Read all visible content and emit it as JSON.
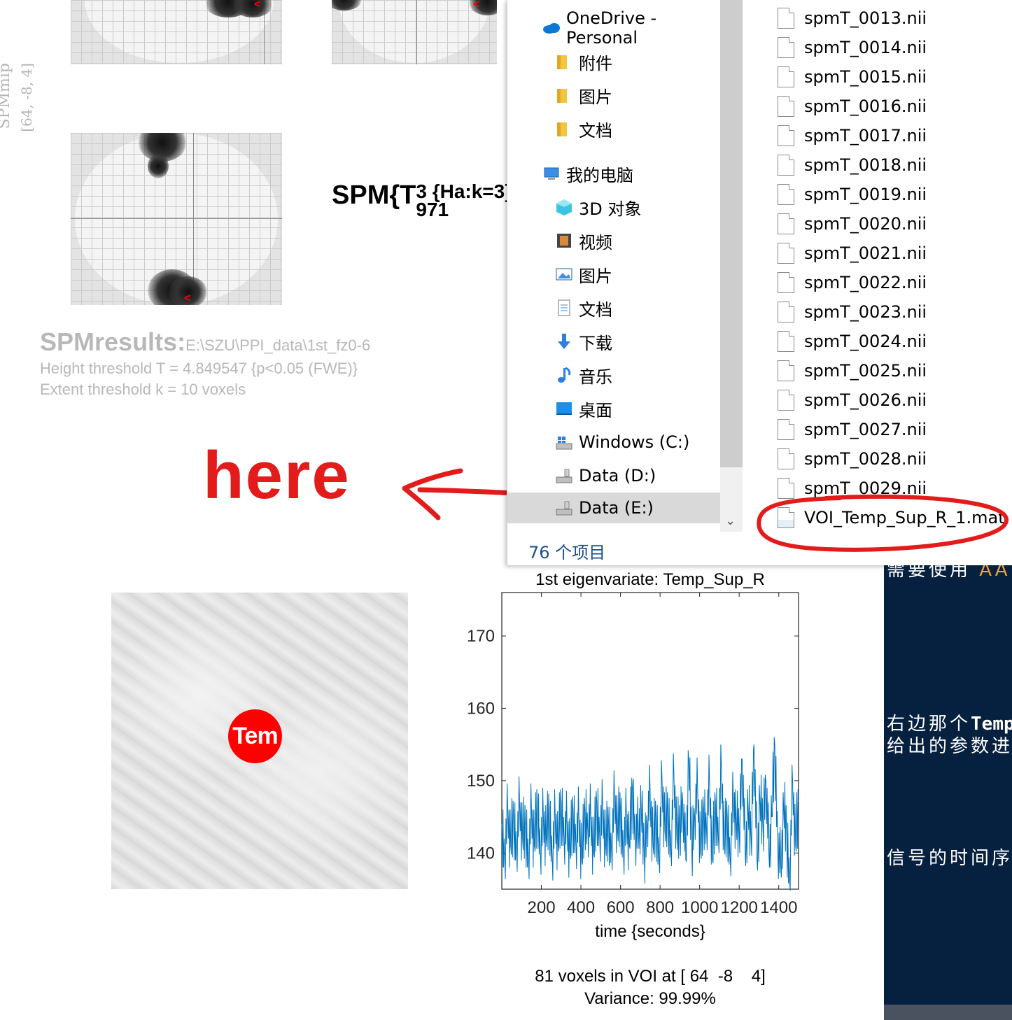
{
  "spm": {
    "side_label": "SPMmip",
    "side_coords": "[64, -8, 4]",
    "stat_prefix": "SPM{T",
    "stat_sup": "3 {Ha:k=3}",
    "stat_sub": "971",
    "stat_suffix": "}",
    "results_title": "SPMresults:",
    "results_path": "E:\\SZU\\PPI_data\\1st_fz0-6",
    "height_threshold": "Height threshold T = 4.849547  {p<0.05 (FWE)}",
    "extent_threshold": "Extent threshold k = 10 voxels"
  },
  "annotation": {
    "here_text": "here",
    "color": "#e31b1b"
  },
  "explorer": {
    "nav_items": [
      {
        "label": "OneDrive - Personal",
        "icon": "onedrive-icon"
      },
      {
        "label": "附件",
        "icon": "folder-icon"
      },
      {
        "label": "图片",
        "icon": "folder-icon"
      },
      {
        "label": "文档",
        "icon": "folder-icon"
      },
      {
        "label": "我的电脑",
        "icon": "computer-icon"
      },
      {
        "label": "3D 对象",
        "icon": "3d-objects-icon"
      },
      {
        "label": "视频",
        "icon": "video-icon"
      },
      {
        "label": "图片",
        "icon": "pictures-icon"
      },
      {
        "label": "文档",
        "icon": "documents-icon"
      },
      {
        "label": "下载",
        "icon": "download-icon"
      },
      {
        "label": "音乐",
        "icon": "music-icon"
      },
      {
        "label": "桌面",
        "icon": "desktop-icon"
      },
      {
        "label": "Windows (C:)",
        "icon": "windows-drive-icon"
      },
      {
        "label": "Data (D:)",
        "icon": "drive-icon"
      },
      {
        "label": "Data (E:)",
        "icon": "drive-icon"
      }
    ],
    "status": "76 个项目",
    "files": [
      "spmT_0013.nii",
      "spmT_0014.nii",
      "spmT_0015.nii",
      "spmT_0016.nii",
      "spmT_0017.nii",
      "spmT_0018.nii",
      "spmT_0019.nii",
      "spmT_0020.nii",
      "spmT_0021.nii",
      "spmT_0022.nii",
      "spmT_0023.nii",
      "spmT_0024.nii",
      "spmT_0025.nii",
      "spmT_0026.nii",
      "spmT_0027.nii",
      "spmT_0028.nii",
      "spmT_0029.nii",
      "VOI_Temp_Sup_R_1.mat"
    ]
  },
  "voi": {
    "dot_label": "Tem",
    "dot_color": "#ff0000"
  },
  "chart_data": {
    "type": "line",
    "title": "1st eigenvariate: Temp_Sup_R",
    "xlabel": "time {seconds}",
    "ylabel": "",
    "xlim": [
      0,
      1500
    ],
    "ylim": [
      135,
      176
    ],
    "xticks": [
      200,
      400,
      600,
      800,
      1000,
      1200,
      1400
    ],
    "yticks": [
      140,
      150,
      160,
      170
    ],
    "series": [
      {
        "color": "#0072bd",
        "x": [
          0,
          15,
          30,
          45,
          60,
          75,
          90,
          105,
          120,
          135,
          150,
          165,
          180,
          195,
          210,
          225,
          240,
          255,
          270,
          285,
          300,
          315,
          330,
          345,
          360,
          375,
          390,
          405,
          420,
          435,
          450,
          465,
          480,
          495,
          510,
          525,
          540,
          555,
          570,
          585,
          600,
          615,
          630,
          645,
          660,
          675,
          690,
          705,
          720,
          735,
          750,
          765,
          780,
          795,
          810,
          825,
          840,
          855,
          870,
          885,
          900,
          915,
          930,
          945,
          960,
          975,
          990,
          1005,
          1020,
          1035,
          1050,
          1065,
          1080,
          1095,
          1110,
          1125,
          1140,
          1155,
          1170,
          1185,
          1200,
          1215,
          1230,
          1245,
          1260,
          1275,
          1290,
          1305,
          1320,
          1335,
          1350,
          1365,
          1380,
          1395,
          1410,
          1425,
          1440,
          1455,
          1470,
          1485,
          1500
        ],
        "values": [
          144,
          139,
          146,
          141,
          145,
          140,
          147,
          142,
          144,
          139,
          146,
          141,
          147,
          140,
          145,
          142,
          146,
          139,
          145,
          141,
          147,
          142,
          144,
          140,
          146,
          141,
          145,
          139,
          146,
          143,
          145,
          140,
          147,
          142,
          146,
          141,
          144,
          140,
          148,
          143,
          146,
          140,
          145,
          141,
          149,
          142,
          143,
          146,
          140,
          144,
          148,
          141,
          145,
          139,
          150,
          143,
          146,
          140,
          151,
          142,
          144,
          147,
          139,
          153,
          141,
          145,
          149,
          140,
          146,
          143,
          150,
          139,
          147,
          142,
          152,
          141,
          145,
          139,
          148,
          144,
          143,
          153,
          140,
          146,
          142,
          155,
          139,
          147,
          144,
          150,
          140,
          145,
          155,
          141,
          138,
          146,
          143,
          136,
          150,
          141,
          147
        ]
      }
    ],
    "footer_line1": "81 voxels in VOI at [ 64  -8    4]",
    "footer_line2": "Variance: 99.99%"
  },
  "dark_panel": {
    "line1_a": "需要使用",
    "line1_b": "AAL",
    "line2_a": "右边那个",
    "line2_b": "Temp",
    "line3": "给出的参数进",
    "line4": "信号的时间序"
  }
}
